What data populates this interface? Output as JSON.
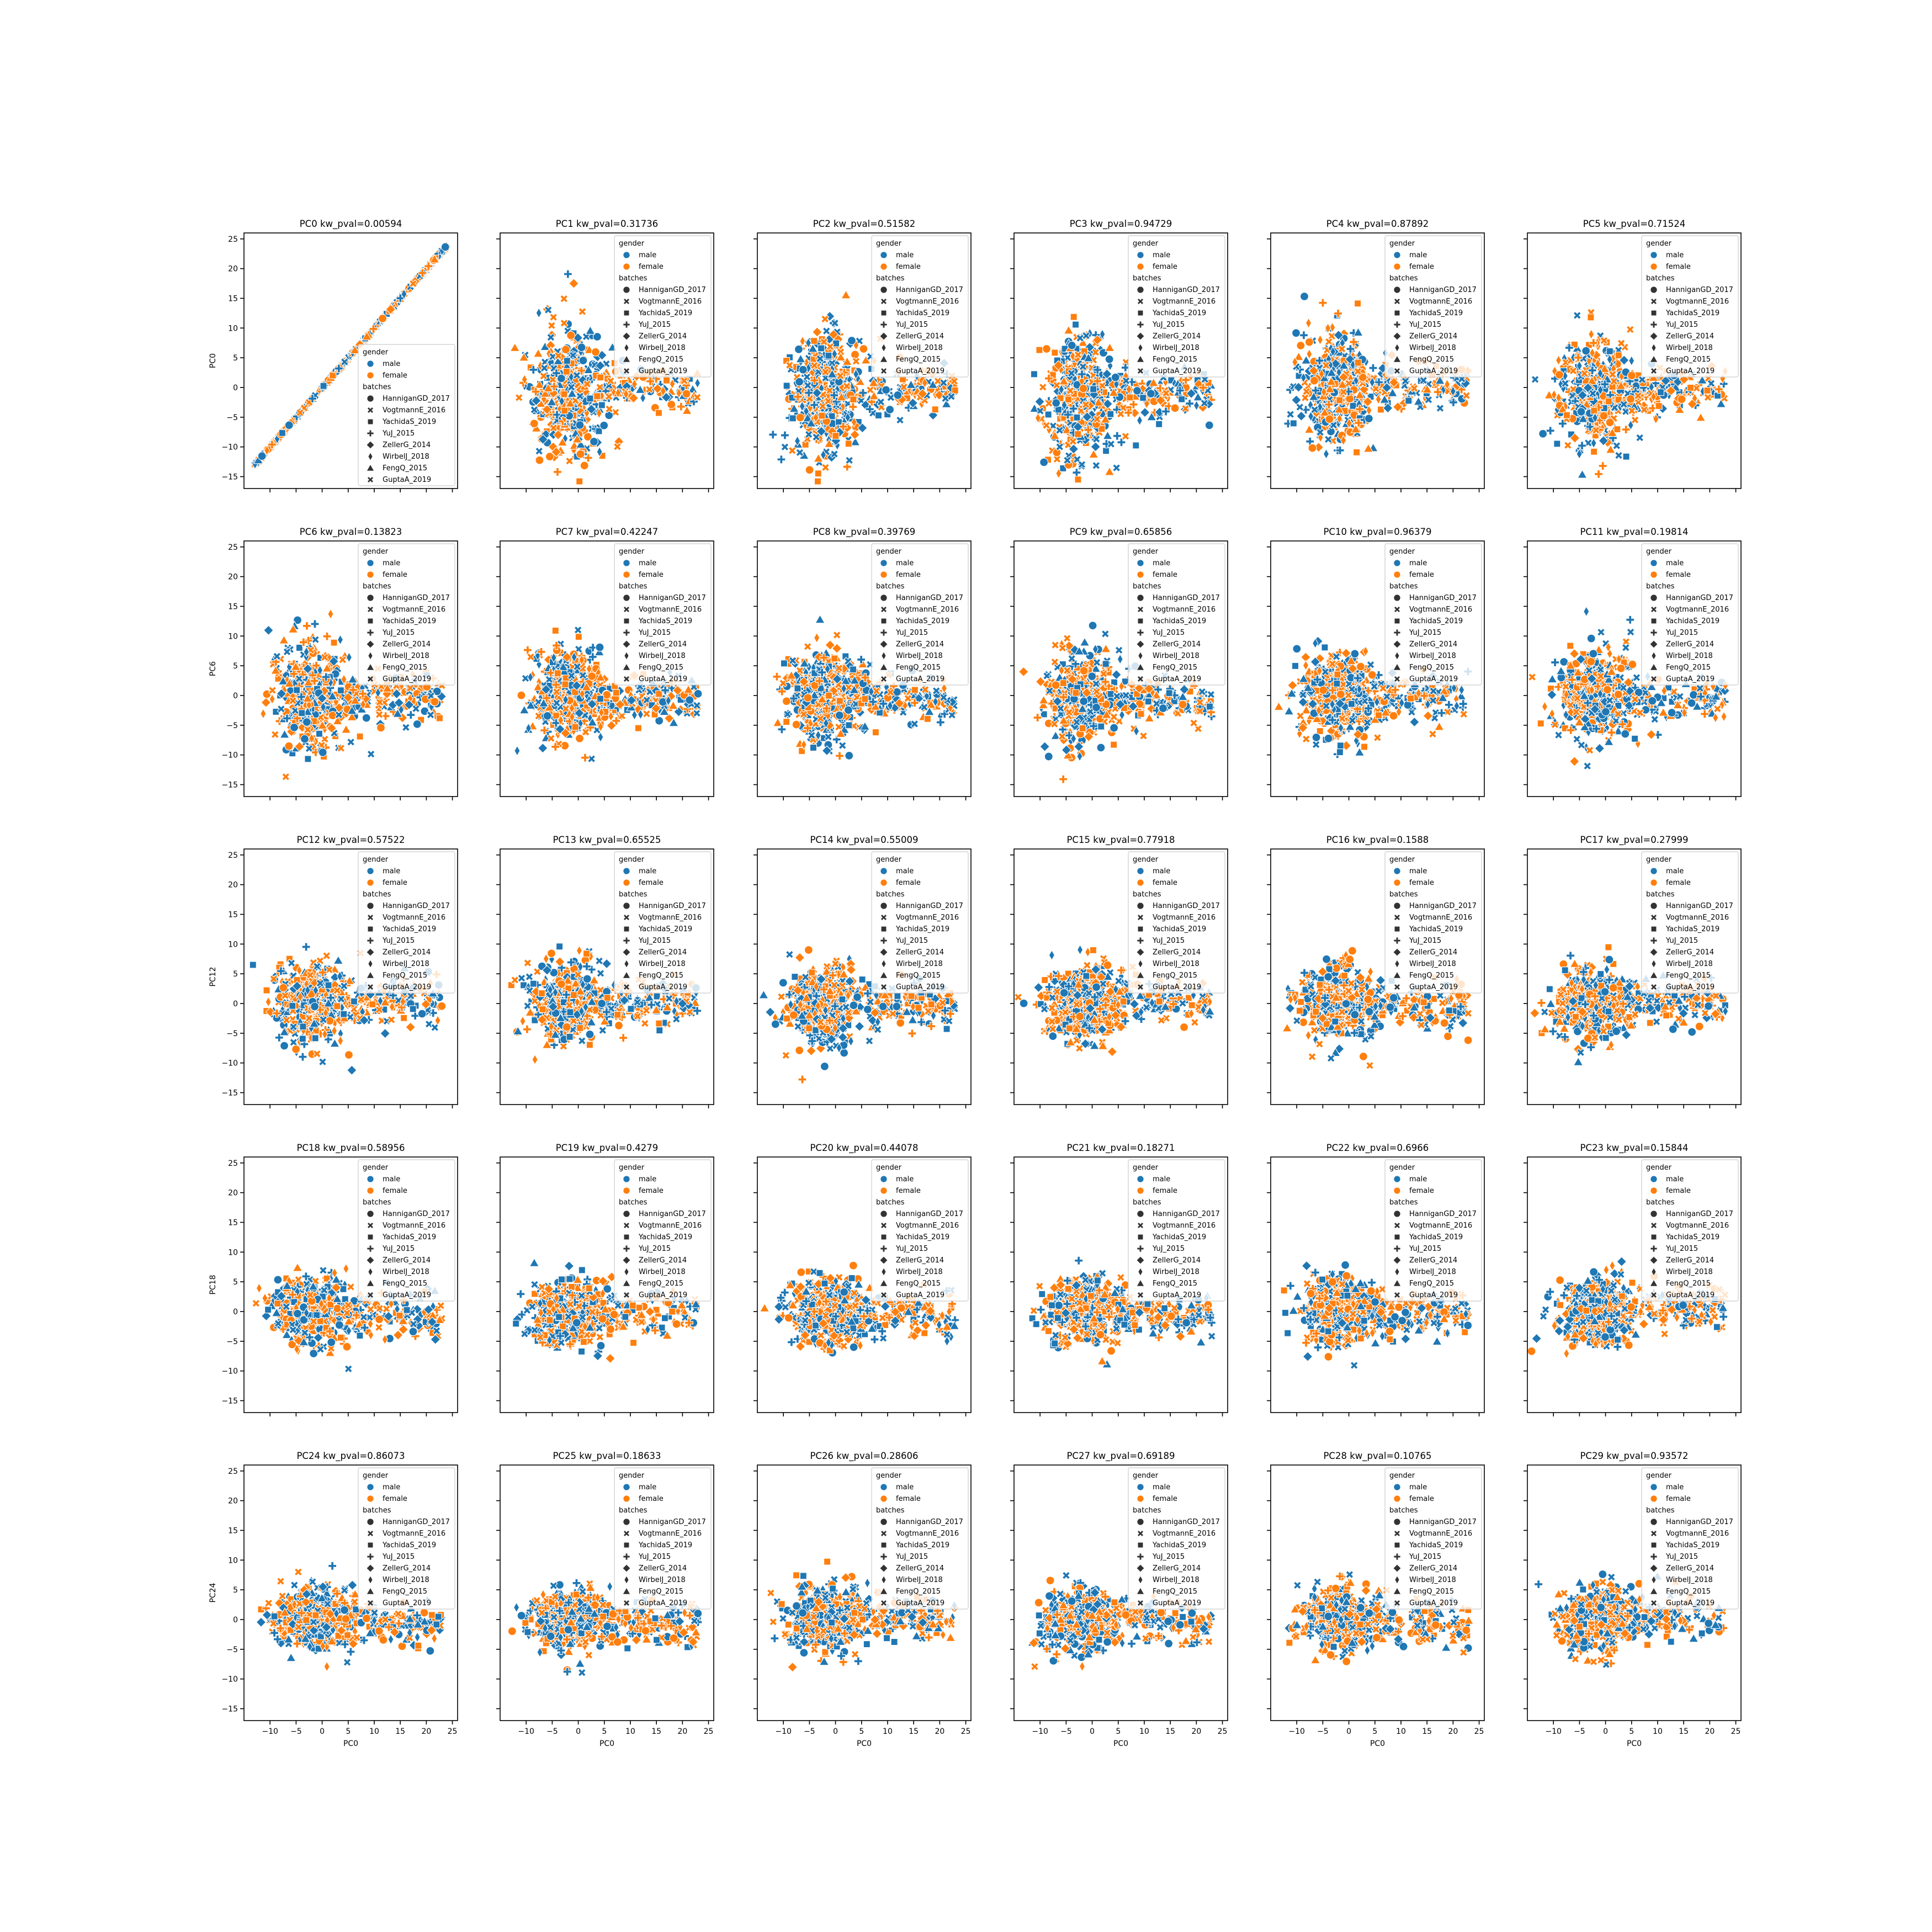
{
  "figure": {
    "panel_titles": [
      "PC0 kw_pval=0.00594",
      "PC1 kw_pval=0.31736",
      "PC2 kw_pval=0.51582",
      "PC3 kw_pval=0.94729",
      "PC4 kw_pval=0.87892",
      "PC5 kw_pval=0.71524",
      "PC6 kw_pval=0.13823",
      "PC7 kw_pval=0.42247",
      "PC8 kw_pval=0.39769",
      "PC9 kw_pval=0.65856",
      "PC10 kw_pval=0.96379",
      "PC11 kw_pval=0.19814",
      "PC12 kw_pval=0.57522",
      "PC13 kw_pval=0.65525",
      "PC14 kw_pval=0.55009",
      "PC15 kw_pval=0.77918",
      "PC16 kw_pval=0.1588",
      "PC17 kw_pval=0.27999",
      "PC18 kw_pval=0.58956",
      "PC19 kw_pval=0.4279",
      "PC20 kw_pval=0.44078",
      "PC21 kw_pval=0.18271",
      "PC22 kw_pval=0.6966",
      "PC23 kw_pval=0.15844",
      "PC24 kw_pval=0.86073",
      "PC25 kw_pval=0.18633",
      "PC26 kw_pval=0.28606",
      "PC27 kw_pval=0.69189",
      "PC28 kw_pval=0.10765",
      "PC29 kw_pval=0.93572"
    ],
    "row_ylabels": [
      "PC0",
      "PC6",
      "PC12",
      "PC18",
      "PC24"
    ],
    "xlabel": "PC0"
  },
  "chart_data": {
    "type": "scatter",
    "layout": "grid 5 rows x 6 columns, shared x and y axes",
    "xlim": [
      -15,
      26
    ],
    "ylim": [
      -17,
      26
    ],
    "xticks": [
      -10,
      -5,
      0,
      5,
      10,
      15,
      20,
      25
    ],
    "yticks": [
      -15,
      -10,
      -5,
      0,
      5,
      10,
      15,
      20,
      25
    ],
    "xtick_labels": [
      "−10",
      "−5",
      "0",
      "5",
      "10",
      "15",
      "20",
      "25"
    ],
    "ytick_labels": [
      "−15",
      "−10",
      "−5",
      "0",
      "5",
      "10",
      "15",
      "20",
      "25"
    ],
    "x_variable": "PC0",
    "hue": "gender",
    "style": "batches",
    "grid": false,
    "legend": {
      "hue_title": "gender",
      "hue_entries": [
        {
          "label": "male",
          "color": "#1f77b4"
        },
        {
          "label": "female",
          "color": "#ff7f0e"
        }
      ],
      "style_title": "batches",
      "style_entries": [
        {
          "label": "HanniganGD_2017",
          "marker": "circle"
        },
        {
          "label": "VogtmannE_2016",
          "marker": "x-cross"
        },
        {
          "label": "YachidaS_2019",
          "marker": "square"
        },
        {
          "label": "YuJ_2015",
          "marker": "plus"
        },
        {
          "label": "ZellerG_2014",
          "marker": "diamond"
        },
        {
          "label": "WirbelJ_2018",
          "marker": "thin-diamond"
        },
        {
          "label": "FengQ_2015",
          "marker": "triangle"
        },
        {
          "label": "GuptaA_2019",
          "marker": "x"
        }
      ],
      "placement_panel0": "lower right",
      "placement_other_panels": "upper right"
    },
    "panels": [
      {
        "y_variable": "PC0",
        "kw_pval": 0.00594,
        "shape": "diagonal",
        "y_center": 0,
        "y_spread": 0,
        "tail_sign": 1
      },
      {
        "y_variable": "PC1",
        "kw_pval": 0.31736,
        "shape": "cloud",
        "y_center": -1,
        "y_spread": 5.5,
        "tail_sign": 1
      },
      {
        "y_variable": "PC2",
        "kw_pval": 0.51582,
        "shape": "cloud",
        "y_center": -1,
        "y_spread": 5.0,
        "tail_sign": 1
      },
      {
        "y_variable": "PC3",
        "kw_pval": 0.94729,
        "shape": "cloud",
        "y_center": -1.5,
        "y_spread": 5.0,
        "tail_sign": 1
      },
      {
        "y_variable": "PC4",
        "kw_pval": 0.87892,
        "shape": "cloud",
        "y_center": 0,
        "y_spread": 4.5,
        "tail_sign": 1
      },
      {
        "y_variable": "PC5",
        "kw_pval": 0.71524,
        "shape": "cloud",
        "y_center": -1,
        "y_spread": 4.5,
        "tail_sign": 1
      },
      {
        "y_variable": "PC6",
        "kw_pval": 0.13823,
        "shape": "cloud",
        "y_center": 0,
        "y_spread": 4.5,
        "tail_sign": -1
      },
      {
        "y_variable": "PC7",
        "kw_pval": 0.42247,
        "shape": "cloud",
        "y_center": 0,
        "y_spread": 4.0,
        "tail_sign": -1
      },
      {
        "y_variable": "PC8",
        "kw_pval": 0.39769,
        "shape": "cloud",
        "y_center": 0,
        "y_spread": 3.8,
        "tail_sign": -1
      },
      {
        "y_variable": "PC9",
        "kw_pval": 0.65856,
        "shape": "cloud",
        "y_center": -0.5,
        "y_spread": 3.8,
        "tail_sign": -1
      },
      {
        "y_variable": "PC10",
        "kw_pval": 0.96379,
        "shape": "cloud",
        "y_center": 0,
        "y_spread": 3.6,
        "tail_sign": -1
      },
      {
        "y_variable": "PC11",
        "kw_pval": 0.19814,
        "shape": "cloud",
        "y_center": 0,
        "y_spread": 3.6,
        "tail_sign": -1
      },
      {
        "y_variable": "PC12",
        "kw_pval": 0.57522,
        "shape": "cloud",
        "y_center": 0,
        "y_spread": 3.4,
        "tail_sign": 1
      },
      {
        "y_variable": "PC13",
        "kw_pval": 0.65525,
        "shape": "cloud",
        "y_center": 0.5,
        "y_spread": 3.2,
        "tail_sign": -1
      },
      {
        "y_variable": "PC14",
        "kw_pval": 0.55009,
        "shape": "cloud",
        "y_center": 0,
        "y_spread": 3.2,
        "tail_sign": -1
      },
      {
        "y_variable": "PC15",
        "kw_pval": 0.77918,
        "shape": "cloud",
        "y_center": 0,
        "y_spread": 3.2,
        "tail_sign": 1
      },
      {
        "y_variable": "PC16",
        "kw_pval": 0.1588,
        "shape": "cloud",
        "y_center": 0,
        "y_spread": 3.0,
        "tail_sign": -1
      },
      {
        "y_variable": "PC17",
        "kw_pval": 0.27999,
        "shape": "cloud",
        "y_center": 0,
        "y_spread": 3.0,
        "tail_sign": 1
      },
      {
        "y_variable": "PC18",
        "kw_pval": 0.58956,
        "shape": "cloud",
        "y_center": 0,
        "y_spread": 2.8,
        "tail_sign": -1
      },
      {
        "y_variable": "PC19",
        "kw_pval": 0.4279,
        "shape": "cloud",
        "y_center": 0,
        "y_spread": 2.8,
        "tail_sign": -1
      },
      {
        "y_variable": "PC20",
        "kw_pval": 0.44078,
        "shape": "cloud",
        "y_center": 0,
        "y_spread": 2.8,
        "tail_sign": -1
      },
      {
        "y_variable": "PC21",
        "kw_pval": 0.18271,
        "shape": "cloud",
        "y_center": 0,
        "y_spread": 2.8,
        "tail_sign": -1
      },
      {
        "y_variable": "PC22",
        "kw_pval": 0.6966,
        "shape": "cloud",
        "y_center": 0,
        "y_spread": 2.8,
        "tail_sign": -1
      },
      {
        "y_variable": "PC23",
        "kw_pval": 0.15844,
        "shape": "cloud",
        "y_center": 0,
        "y_spread": 2.8,
        "tail_sign": 1
      },
      {
        "y_variable": "PC24",
        "kw_pval": 0.86073,
        "shape": "cloud",
        "y_center": 0,
        "y_spread": 2.6,
        "tail_sign": -1
      },
      {
        "y_variable": "PC25",
        "kw_pval": 0.18633,
        "shape": "cloud",
        "y_center": 0,
        "y_spread": 2.6,
        "tail_sign": -1
      },
      {
        "y_variable": "PC26",
        "kw_pval": 0.28606,
        "shape": "cloud",
        "y_center": 0,
        "y_spread": 2.6,
        "tail_sign": 1
      },
      {
        "y_variable": "PC27",
        "kw_pval": 0.69189,
        "shape": "cloud",
        "y_center": 0,
        "y_spread": 2.6,
        "tail_sign": -1
      },
      {
        "y_variable": "PC28",
        "kw_pval": 0.10765,
        "shape": "cloud",
        "y_center": 0,
        "y_spread": 2.6,
        "tail_sign": -1
      },
      {
        "y_variable": "PC29",
        "kw_pval": 0.93572,
        "shape": "cloud",
        "y_center": 0,
        "y_spread": 2.6,
        "tail_sign": 1
      }
    ]
  }
}
